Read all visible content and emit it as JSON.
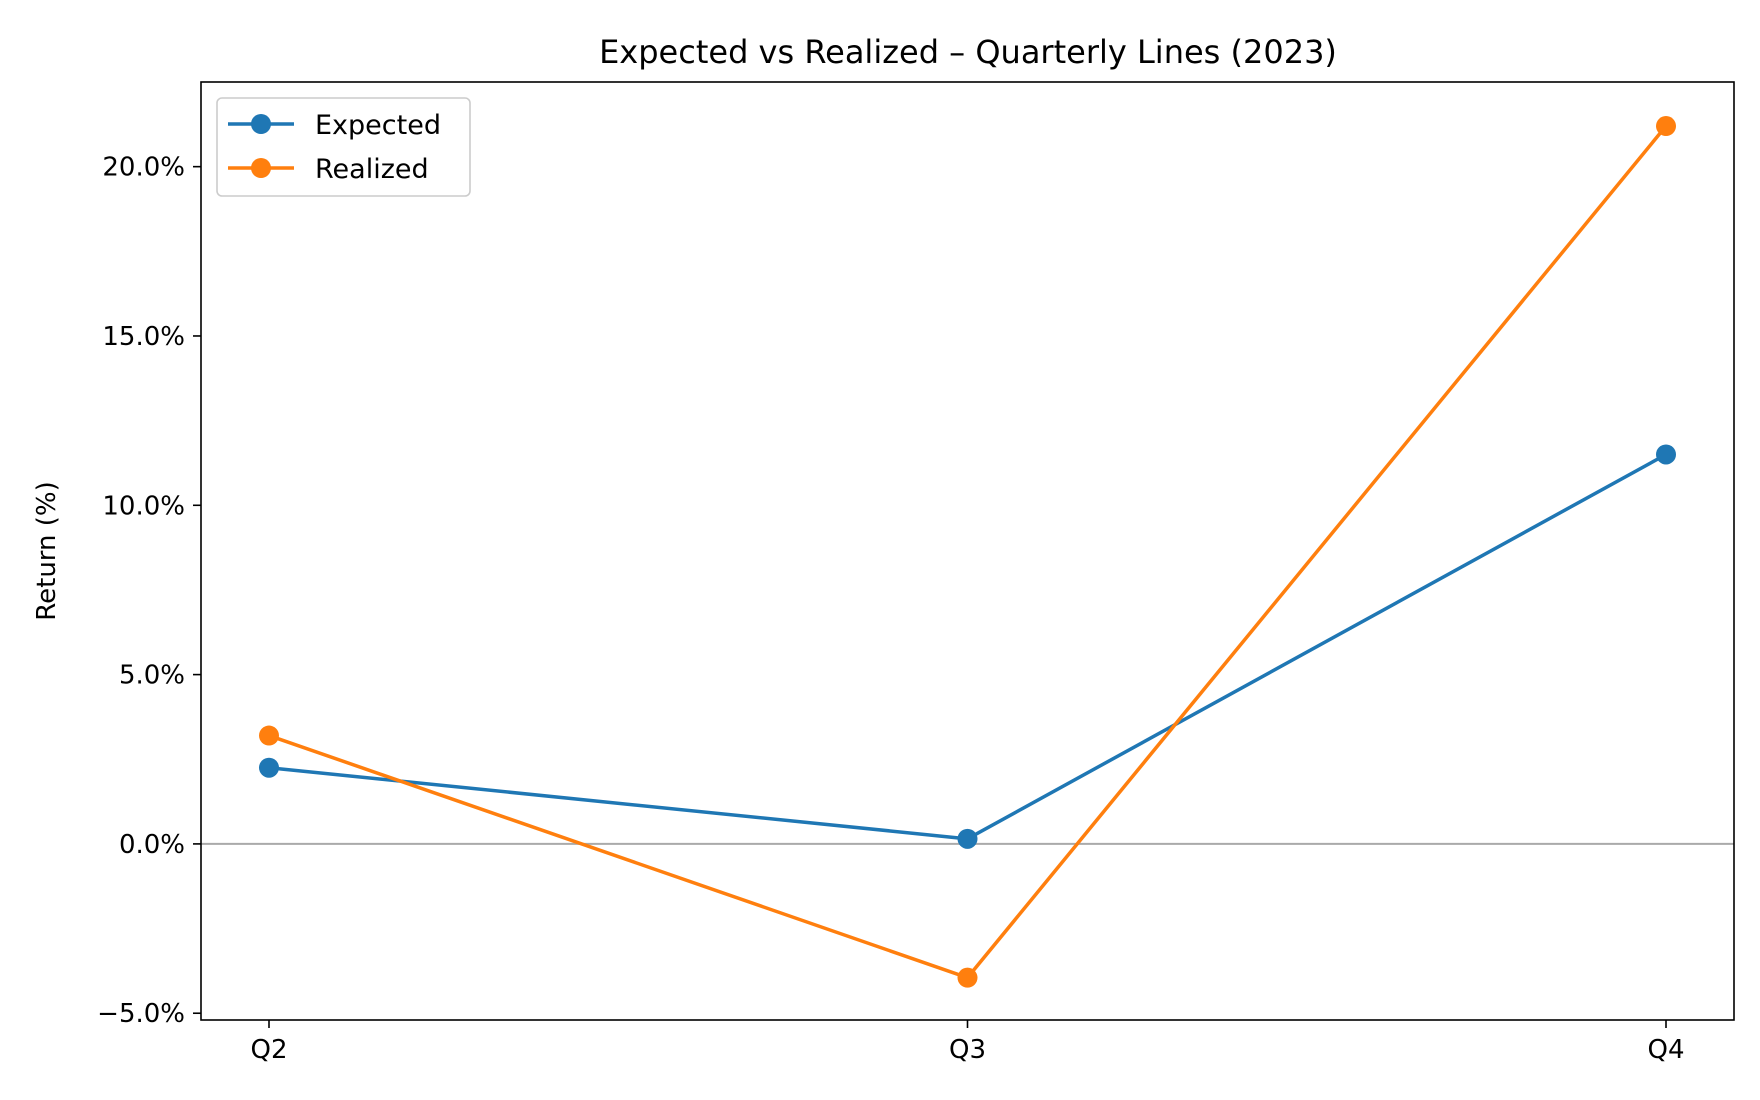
{
  "chart_data": {
    "type": "line",
    "title": "Expected vs Realized – Quarterly Lines (2023)",
    "xlabel": "",
    "ylabel": "Return (%)",
    "categories": [
      "Q2",
      "Q3",
      "Q4"
    ],
    "ylim": [
      -5.2,
      22.5
    ],
    "yticks": [
      -5.0,
      0.0,
      5.0,
      10.0,
      15.0,
      20.0
    ],
    "ytick_labels": [
      "−5.0%",
      "0.0%",
      "5.0%",
      "10.0%",
      "15.0%",
      "20.0%"
    ],
    "zero_line": 0.0,
    "grid": false,
    "legend_position": "upper-left",
    "series": [
      {
        "name": "Expected",
        "color": "#1f77b4",
        "values": [
          2.25,
          0.15,
          11.5
        ]
      },
      {
        "name": "Realized",
        "color": "#ff7f0e",
        "values": [
          3.2,
          -3.95,
          21.2
        ]
      }
    ]
  }
}
